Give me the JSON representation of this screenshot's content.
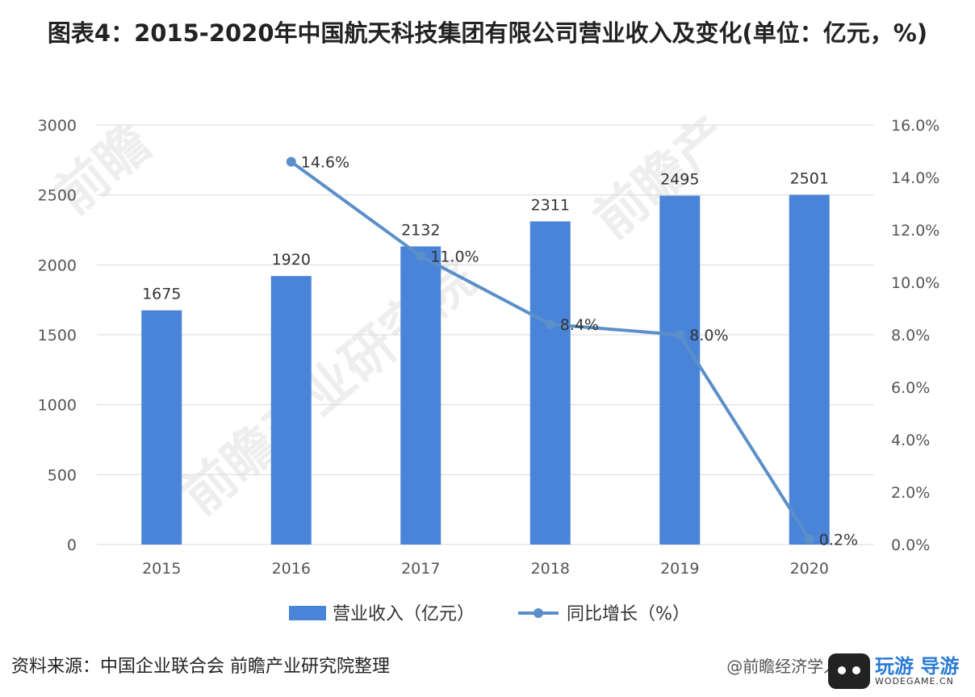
{
  "title": "图表4：2015-2020年中国航天科技集团有限公司营业收入及变化(单位：亿元，%)",
  "source_text": "资料来源：中国企业联合会 前瞻产业研究院整理",
  "credit_text": "@前瞻经济学人APP",
  "watermark_text": "前瞻产业研究院",
  "corner_logo": {
    "name": "玩游 导游",
    "sub": "WODEGAME.CN"
  },
  "colors": {
    "bar": "#4a84d8",
    "line": "#5b8fc9",
    "grid": "#d9d9d9",
    "axis_text": "#555555"
  },
  "chart_data": {
    "type": "bar+line",
    "categories": [
      "2015",
      "2016",
      "2017",
      "2018",
      "2019",
      "2020"
    ],
    "series": [
      {
        "name": "营业收入（亿元）",
        "type": "bar",
        "axis": "left",
        "values": [
          1675,
          1920,
          2132,
          2311,
          2495,
          2501
        ],
        "labels": [
          "1675",
          "1920",
          "2132",
          "2311",
          "2495",
          "2501"
        ]
      },
      {
        "name": "同比增长（%）",
        "type": "line",
        "axis": "right",
        "values": [
          null,
          14.6,
          11.0,
          8.4,
          8.0,
          0.2
        ],
        "labels": [
          null,
          "14.6%",
          "11.0%",
          "8.4%",
          "8.0%",
          "0.2%"
        ]
      }
    ],
    "y_left": {
      "min": 0,
      "max": 3000,
      "ticks": [
        "0",
        "500",
        "1000",
        "1500",
        "2000",
        "2500",
        "3000"
      ]
    },
    "y_right": {
      "min": 0,
      "max": 16,
      "ticks": [
        "0.0%",
        "2.0%",
        "4.0%",
        "6.0%",
        "8.0%",
        "10.0%",
        "12.0%",
        "14.0%",
        "16.0%"
      ]
    },
    "grid": true,
    "legend_position": "bottom"
  }
}
